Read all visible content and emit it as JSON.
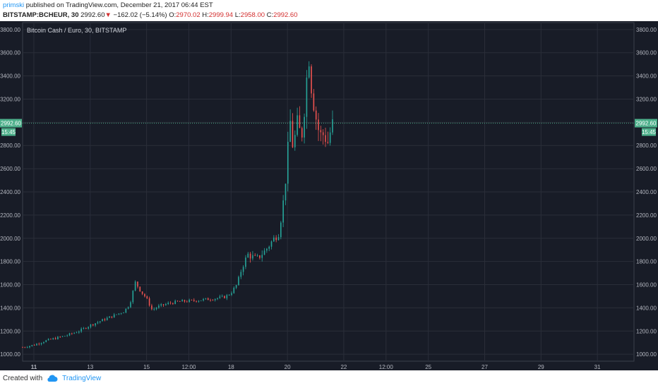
{
  "header": {
    "user": "primski",
    "published_text": " published on TradingView.com, December 21, 2017 06:44 EST",
    "symbol": "BITSTAMP:BCHEUR, 30",
    "last_price": "2992.60",
    "change_arrow": "▼",
    "change": "−162.02 (−5.14%)",
    "open_label": "O:",
    "open_value": "2970.02",
    "high_label": "H:",
    "high_value": "2999.94",
    "low_label": "L:",
    "low_value": "2958.00",
    "close_label": "C:",
    "close_value": "2992.60"
  },
  "footer": {
    "created_with": "Created with",
    "brand": "TradingView"
  },
  "colors": {
    "background": "#181c27",
    "grid": "#2a2e39",
    "up": "#26a69a",
    "down": "#ef5350",
    "price_line": "#4caf8a",
    "price_label_bg": "#4caf8a"
  },
  "chart_data": {
    "type": "candlestick",
    "title": "Bitcoin Cash / Euro, 30, BITSTAMP",
    "ylim": [
      940,
      3860
    ],
    "yticks": [
      "1000.00",
      "1200.00",
      "1400.00",
      "1600.00",
      "1800.00",
      "2000.00",
      "2200.00",
      "2400.00",
      "2600.00",
      "2800.00",
      "3000.00",
      "3200.00",
      "3400.00",
      "3600.00",
      "3800.00"
    ],
    "ytick_values": [
      1000,
      1200,
      1400,
      1600,
      1800,
      2000,
      2200,
      2400,
      2600,
      2800,
      3000,
      3200,
      3400,
      3600,
      3800
    ],
    "x_range_days": [
      10.6,
      32.3
    ],
    "xticks": [
      {
        "label": "11",
        "day": 11,
        "bold": true
      },
      {
        "label": "13",
        "day": 13
      },
      {
        "label": "15",
        "day": 15
      },
      {
        "label": "12:00",
        "day": 16.5
      },
      {
        "label": "18",
        "day": 18
      },
      {
        "label": "20",
        "day": 20
      },
      {
        "label": "22",
        "day": 22
      },
      {
        "label": "12:00",
        "day": 23.5
      },
      {
        "label": "25",
        "day": 25
      },
      {
        "label": "27",
        "day": 27
      },
      {
        "label": "29",
        "day": 29
      },
      {
        "label": "31",
        "day": 31
      }
    ],
    "last_price": 2992.6,
    "last_price_label": "2992.60",
    "countdown_label": "15:45",
    "price_path": [
      [
        10.6,
        1060
      ],
      [
        11.0,
        1080
      ],
      [
        11.4,
        1115
      ],
      [
        11.8,
        1140
      ],
      [
        12.2,
        1165
      ],
      [
        12.6,
        1200
      ],
      [
        13.0,
        1250
      ],
      [
        13.4,
        1290
      ],
      [
        13.8,
        1330
      ],
      [
        14.2,
        1370
      ],
      [
        14.4,
        1430
      ],
      [
        14.6,
        1620
      ],
      [
        14.8,
        1540
      ],
      [
        15.0,
        1480
      ],
      [
        15.2,
        1380
      ],
      [
        15.4,
        1410
      ],
      [
        15.8,
        1440
      ],
      [
        16.2,
        1455
      ],
      [
        16.6,
        1460
      ],
      [
        17.0,
        1470
      ],
      [
        17.4,
        1480
      ],
      [
        17.8,
        1495
      ],
      [
        18.0,
        1530
      ],
      [
        18.2,
        1600
      ],
      [
        18.4,
        1760
      ],
      [
        18.6,
        1860
      ],
      [
        18.9,
        1820
      ],
      [
        19.2,
        1890
      ],
      [
        19.5,
        1990
      ],
      [
        19.7,
        2050
      ],
      [
        19.9,
        2400
      ],
      [
        20.0,
        2700
      ],
      [
        20.1,
        3000
      ],
      [
        20.2,
        2780
      ],
      [
        20.35,
        2980
      ],
      [
        20.5,
        2870
      ],
      [
        20.65,
        3260
      ],
      [
        20.75,
        3620
      ],
      [
        20.85,
        3320
      ],
      [
        21.0,
        3060
      ],
      [
        21.15,
        2880
      ],
      [
        21.3,
        2900
      ],
      [
        21.45,
        2820
      ],
      [
        21.55,
        2960
      ],
      [
        21.65,
        2992
      ]
    ]
  }
}
